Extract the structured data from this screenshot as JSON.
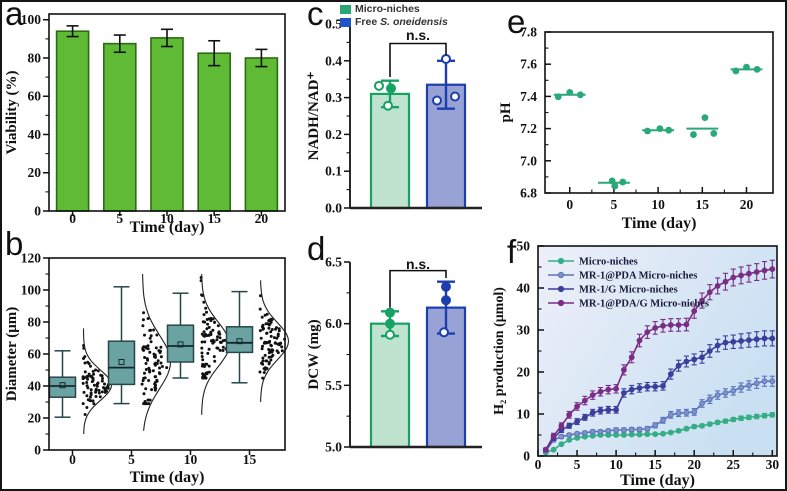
{
  "panels": {
    "a": {
      "letter": "a"
    },
    "b": {
      "letter": "b"
    },
    "c": {
      "letter": "c"
    },
    "d": {
      "letter": "d"
    },
    "e": {
      "letter": "e"
    },
    "f": {
      "letter": "f"
    }
  },
  "chart_data": [
    {
      "id": "a",
      "type": "bar",
      "xlabel": "Time (day)",
      "ylabel": "Viability (%)",
      "categories": [
        "0",
        "5",
        "10",
        "15",
        "20"
      ],
      "values": [
        94,
        87.5,
        90.5,
        82.5,
        80
      ],
      "errors": [
        2.8,
        4.5,
        4.5,
        6.5,
        4.5
      ],
      "ylim": [
        0,
        103
      ],
      "yticks": [
        0,
        20,
        40,
        60,
        80,
        100
      ],
      "ytick_labels": [
        "0",
        "20",
        "40",
        "60",
        "80",
        "100"
      ],
      "bar_fill": "#5fbb36",
      "bar_edge": "#2c6b12"
    },
    {
      "id": "b",
      "type": "box",
      "xlabel": "Time (day)",
      "ylabel": "Diameter (μm)",
      "categories": [
        "0",
        "5",
        "10",
        "15"
      ],
      "ylim": [
        0,
        120
      ],
      "yticks": [
        0,
        20,
        40,
        60,
        80,
        100,
        120
      ],
      "ytick_labels": [
        "0",
        "20",
        "40",
        "60",
        "80",
        "100",
        "120"
      ],
      "box_fill": "#6ba3a3",
      "box_edge": "#26474a",
      "point_color": "#101010",
      "boxes": [
        {
          "whisker_low": 20.5,
          "q1": 33,
          "median": 40,
          "q3": 45.5,
          "whisker_high": 62,
          "mean": 40.5,
          "sd": 9,
          "n": 70,
          "point_range": [
            21,
            74
          ],
          "curve_range": [
            10,
            76
          ]
        },
        {
          "whisker_low": 29,
          "q1": 41,
          "median": 51.5,
          "q3": 68,
          "whisker_high": 102,
          "mean": 55,
          "sd": 16,
          "n": 85,
          "point_range": [
            29,
            104
          ],
          "curve_range": [
            12,
            110
          ]
        },
        {
          "whisker_low": 45,
          "q1": 55,
          "median": 65,
          "q3": 78,
          "whisker_high": 98,
          "mean": 66,
          "sd": 13,
          "n": 85,
          "point_range": [
            45,
            108
          ],
          "curve_range": [
            22,
            110
          ]
        },
        {
          "whisker_low": 42,
          "q1": 61,
          "median": 67,
          "q3": 77,
          "whisker_high": 99,
          "mean": 68,
          "sd": 11,
          "n": 85,
          "point_range": [
            32,
            105
          ],
          "curve_range": [
            30,
            106
          ]
        }
      ]
    },
    {
      "id": "c",
      "type": "bar_pair",
      "ylabel": "NADH/NAD⁺",
      "annotation": "n.s.",
      "legend": [
        {
          "label": "Micro-niches",
          "color": "#2aa574"
        },
        {
          "label_prefix": "Free ",
          "label_italic": "S. oneidensis",
          "color": "#1e56c8"
        }
      ],
      "ylim": [
        0,
        0.5
      ],
      "yticks": [
        0,
        0.1,
        0.2,
        0.3,
        0.4,
        0.5
      ],
      "ytick_labels": [
        "0.0",
        "0.1",
        "0.2",
        "0.3",
        "0.4",
        "0.5"
      ],
      "bars": [
        {
          "value": 0.31,
          "error": 0.036,
          "fill": "#c0e3cf",
          "edge": "#17a263",
          "points": [
            {
              "v": 0.332,
              "dx": -11,
              "open": true
            },
            {
              "v": 0.325,
              "dx": 1,
              "open": false
            },
            {
              "v": 0.278,
              "dx": -2,
              "open": true
            }
          ]
        },
        {
          "value": 0.335,
          "error": 0.065,
          "fill": "#99a2d4",
          "edge": "#1d3fae",
          "points": [
            {
              "v": 0.405,
              "dx": 0,
              "open": true
            },
            {
              "v": 0.292,
              "dx": -9,
              "open": true
            },
            {
              "v": 0.303,
              "dx": 9,
              "open": true
            }
          ]
        }
      ],
      "bracket": {
        "top": 0.447,
        "left_drop": 0.356,
        "right_drop": 0.415,
        "label_y": 0.468
      }
    },
    {
      "id": "d",
      "type": "bar_pair",
      "ylabel": "DCW (mg)",
      "annotation": "n.s.",
      "ylim": [
        5.0,
        6.5
      ],
      "yticks": [
        5.0,
        5.5,
        6.0,
        6.5
      ],
      "ytick_labels": [
        "5.0",
        "5.5",
        "6.0",
        "6.5"
      ],
      "bars": [
        {
          "value": 6.0,
          "error": 0.1,
          "fill": "#c0e3cf",
          "edge": "#17a263",
          "points": [
            {
              "v": 6.09,
              "dx": 0,
              "open": false
            },
            {
              "v": 6.0,
              "dx": 0,
              "open": false
            },
            {
              "v": 5.91,
              "dx": 0,
              "open": true
            }
          ]
        },
        {
          "value": 6.13,
          "error": 0.21,
          "fill": "#99a2d4",
          "edge": "#1d3fae",
          "points": [
            {
              "v": 6.3,
              "dx": 0,
              "open": false
            },
            {
              "v": 6.19,
              "dx": 0,
              "open": false
            },
            {
              "v": 5.93,
              "dx": -2,
              "open": true
            }
          ]
        }
      ],
      "bracket": {
        "top": 6.43,
        "left_drop": 6.13,
        "right_drop": 6.37,
        "label_y": 6.475
      }
    },
    {
      "id": "e",
      "type": "scatter",
      "xlabel": "Time (day)",
      "ylabel": "pH",
      "xlim": [
        -2.8,
        23
      ],
      "ylim": [
        6.8,
        7.8
      ],
      "xticks": [
        0,
        5,
        10,
        15,
        20
      ],
      "xtick_labels": [
        "0",
        "5",
        "10",
        "15",
        "20"
      ],
      "yticks": [
        6.8,
        7.0,
        7.2,
        7.4,
        7.6,
        7.8
      ],
      "ytick_labels": [
        "6.8",
        "7.0",
        "7.2",
        "7.4",
        "7.6",
        "7.8"
      ],
      "point_color": "#2aa878",
      "mean_halfwidth": 1.8,
      "groups": [
        {
          "x": 0,
          "mean": 7.41,
          "points": [
            [
              -1.3,
              7.398
            ],
            [
              0,
              7.425
            ],
            [
              1.2,
              7.41
            ]
          ]
        },
        {
          "x": 5,
          "mean": 6.864,
          "points": [
            [
              -0.2,
              6.875
            ],
            [
              0.1,
              6.843
            ],
            [
              1.0,
              6.868
            ]
          ]
        },
        {
          "x": 10,
          "mean": 7.19,
          "points": [
            [
              -1.2,
              7.185
            ],
            [
              0.2,
              7.2
            ],
            [
              1.2,
              7.19
            ]
          ]
        },
        {
          "x": 15,
          "mean": 7.2,
          "points": [
            [
              -1.0,
              7.163
            ],
            [
              0.3,
              7.268
            ],
            [
              1.3,
              7.17
            ]
          ]
        },
        {
          "x": 20,
          "mean": 7.568,
          "points": [
            [
              -1.2,
              7.558
            ],
            [
              0,
              7.582
            ],
            [
              1.2,
              7.568
            ]
          ]
        }
      ]
    },
    {
      "id": "f",
      "type": "line",
      "xlabel": "Time (day)",
      "ylabel": "H₂ production (μmol)",
      "xlim": [
        0,
        30.6
      ],
      "ylim": [
        0,
        50
      ],
      "xticks": [
        0,
        5,
        10,
        15,
        20,
        25,
        30
      ],
      "xtick_labels": [
        "0",
        "5",
        "10",
        "15",
        "20",
        "25",
        "30"
      ],
      "yticks": [
        0,
        10,
        20,
        30,
        40,
        50
      ],
      "ytick_labels": [
        "0",
        "10",
        "20",
        "30",
        "40",
        "50"
      ],
      "bg_gradient": [
        "#edeff9",
        "#c9e0f2"
      ],
      "x": [
        1,
        2,
        3,
        4,
        5,
        6,
        7,
        8,
        9,
        10,
        11,
        12,
        13,
        14,
        15,
        16,
        17,
        18,
        19,
        20,
        21,
        22,
        23,
        24,
        25,
        26,
        27,
        28,
        29,
        30
      ],
      "series": [
        {
          "name": "Micro-niches",
          "color": "#35ad85",
          "marker": "#35ad85",
          "values": [
            0.8,
            1.5,
            2.8,
            3.8,
            4.3,
            4.6,
            4.8,
            5.0,
            5.0,
            5.0,
            5.0,
            5.1,
            5.1,
            5.2,
            5.2,
            5.3,
            5.6,
            6.0,
            6.5,
            7.0,
            7.2,
            7.6,
            8.0,
            8.3,
            8.7,
            9.0,
            9.2,
            9.4,
            9.6,
            9.8
          ],
          "errors": [
            0.2,
            0.2,
            0.25,
            0.25,
            0.3,
            0.3,
            0.3,
            0.3,
            0.3,
            0.3,
            0.3,
            0.3,
            0.3,
            0.3,
            0.3,
            0.3,
            0.35,
            0.35,
            0.4,
            0.4,
            0.4,
            0.4,
            0.4,
            0.45,
            0.45,
            0.5,
            0.5,
            0.5,
            0.5,
            0.5
          ]
        },
        {
          "name": "MR-1@PDA Micro-niches",
          "color": "#5b74b8",
          "marker": "#7e93cc",
          "values": [
            1.2,
            3.8,
            4.6,
            5.0,
            5.3,
            5.5,
            5.8,
            5.8,
            6.0,
            6.2,
            6.2,
            6.3,
            6.3,
            6.5,
            7.3,
            8.5,
            9.8,
            10.2,
            10.3,
            10.5,
            12.5,
            13.5,
            14.5,
            15.0,
            15.5,
            16.3,
            16.8,
            17.3,
            17.8,
            17.8
          ],
          "errors": [
            0.3,
            0.4,
            0.4,
            0.4,
            0.4,
            0.4,
            0.4,
            0.4,
            0.4,
            0.5,
            0.5,
            0.5,
            0.5,
            0.5,
            0.6,
            0.7,
            0.8,
            0.8,
            0.8,
            0.8,
            0.9,
            1.0,
            1.0,
            1.0,
            1.0,
            1.1,
            1.1,
            1.2,
            1.2,
            1.2
          ]
        },
        {
          "name": "MR-1/G Micro-niches",
          "color": "#3c3e9c",
          "marker": "#3c3e9c",
          "values": [
            1.5,
            4.2,
            6.2,
            7.2,
            8.2,
            9.2,
            10.3,
            10.8,
            11.0,
            11.0,
            15.0,
            15.8,
            16.2,
            16.5,
            16.5,
            16.7,
            19.5,
            21.5,
            22.5,
            23.0,
            23.5,
            25.0,
            26.3,
            27.0,
            27.2,
            27.4,
            27.6,
            27.8,
            28.0,
            28.0
          ],
          "errors": [
            0.3,
            0.5,
            0.6,
            0.6,
            0.7,
            0.7,
            0.8,
            0.8,
            0.8,
            0.8,
            1.0,
            1.0,
            1.0,
            1.0,
            1.0,
            1.0,
            1.2,
            1.3,
            1.3,
            1.3,
            1.4,
            1.5,
            1.5,
            1.6,
            1.6,
            1.7,
            1.7,
            1.8,
            1.8,
            1.8
          ]
        },
        {
          "name": "MR-1@PDA/G Micro-niches",
          "color": "#7b2d85",
          "marker": "#7b2d85",
          "values": [
            1.5,
            4.8,
            7.2,
            9.8,
            11.8,
            13.2,
            14.5,
            15.3,
            15.8,
            16.0,
            20.5,
            23.5,
            27.5,
            29.5,
            30.5,
            31.0,
            31.2,
            31.2,
            31.3,
            34.5,
            37.0,
            39.0,
            40.5,
            41.5,
            42.5,
            43.0,
            43.4,
            43.8,
            44.2,
            44.5
          ],
          "errors": [
            0.4,
            0.6,
            0.7,
            0.8,
            0.9,
            1.0,
            1.0,
            1.0,
            1.0,
            1.0,
            1.2,
            1.3,
            1.5,
            1.5,
            1.5,
            1.5,
            1.5,
            1.5,
            1.5,
            1.7,
            1.8,
            1.8,
            1.9,
            2.0,
            2.0,
            2.0,
            2.0,
            2.0,
            2.1,
            2.1
          ]
        }
      ]
    }
  ]
}
